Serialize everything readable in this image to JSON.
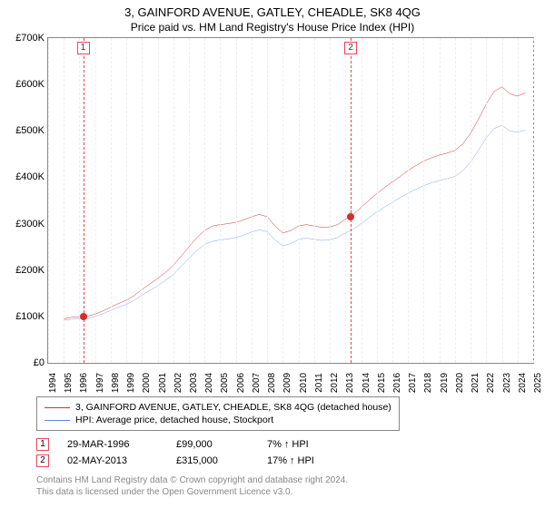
{
  "title": "3, GAINFORD AVENUE, GATLEY, CHEADLE, SK8 4QG",
  "subtitle": "Price paid vs. HM Land Registry's House Price Index (HPI)",
  "chart": {
    "type": "line",
    "ylim": [
      0,
      700000
    ],
    "yticks": [
      0,
      100000,
      200000,
      300000,
      400000,
      500000,
      600000,
      700000
    ],
    "ytick_labels": [
      "£0",
      "£100K",
      "£200K",
      "£300K",
      "£400K",
      "£500K",
      "£600K",
      "£700K"
    ],
    "xlim": [
      1994,
      2025
    ],
    "xticks": [
      1994,
      1995,
      1996,
      1997,
      1998,
      1999,
      2000,
      2001,
      2002,
      2003,
      2004,
      2005,
      2006,
      2007,
      2008,
      2009,
      2010,
      2011,
      2012,
      2013,
      2014,
      2015,
      2016,
      2017,
      2018,
      2019,
      2020,
      2021,
      2022,
      2023,
      2024,
      2025
    ],
    "background_color": "#ffffff",
    "grid_color": "#eeeeee",
    "border_color": "#888888",
    "series": [
      {
        "name": "3, GAINFORD AVENUE, GATLEY, CHEADLE, SK8 4QG (detached house)",
        "color": "#d82c2c",
        "line_width": 1.5,
        "data": [
          [
            1995.0,
            95000
          ],
          [
            1995.5,
            98000
          ],
          [
            1996.0,
            99000
          ],
          [
            1996.5,
            100000
          ],
          [
            1997.0,
            105000
          ],
          [
            1997.5,
            112000
          ],
          [
            1998.0,
            120000
          ],
          [
            1998.5,
            128000
          ],
          [
            1999.0,
            135000
          ],
          [
            1999.5,
            145000
          ],
          [
            2000.0,
            158000
          ],
          [
            2000.5,
            170000
          ],
          [
            2001.0,
            182000
          ],
          [
            2001.5,
            195000
          ],
          [
            2002.0,
            210000
          ],
          [
            2002.5,
            230000
          ],
          [
            2003.0,
            250000
          ],
          [
            2003.5,
            270000
          ],
          [
            2004.0,
            285000
          ],
          [
            2004.5,
            295000
          ],
          [
            2005.0,
            298000
          ],
          [
            2005.5,
            300000
          ],
          [
            2006.0,
            303000
          ],
          [
            2006.5,
            308000
          ],
          [
            2007.0,
            315000
          ],
          [
            2007.5,
            320000
          ],
          [
            2008.0,
            315000
          ],
          [
            2008.5,
            295000
          ],
          [
            2009.0,
            280000
          ],
          [
            2009.5,
            285000
          ],
          [
            2010.0,
            295000
          ],
          [
            2010.5,
            298000
          ],
          [
            2011.0,
            295000
          ],
          [
            2011.5,
            292000
          ],
          [
            2012.0,
            293000
          ],
          [
            2012.5,
            298000
          ],
          [
            2013.0,
            310000
          ],
          [
            2013.35,
            315000
          ],
          [
            2013.5,
            320000
          ],
          [
            2014.0,
            335000
          ],
          [
            2014.5,
            350000
          ],
          [
            2015.0,
            365000
          ],
          [
            2015.5,
            378000
          ],
          [
            2016.0,
            390000
          ],
          [
            2016.5,
            402000
          ],
          [
            2017.0,
            415000
          ],
          [
            2017.5,
            425000
          ],
          [
            2018.0,
            435000
          ],
          [
            2018.5,
            442000
          ],
          [
            2019.0,
            448000
          ],
          [
            2019.5,
            452000
          ],
          [
            2020.0,
            458000
          ],
          [
            2020.5,
            472000
          ],
          [
            2021.0,
            495000
          ],
          [
            2021.5,
            525000
          ],
          [
            2022.0,
            558000
          ],
          [
            2022.5,
            585000
          ],
          [
            2023.0,
            595000
          ],
          [
            2023.5,
            580000
          ],
          [
            2024.0,
            575000
          ],
          [
            2024.5,
            582000
          ]
        ]
      },
      {
        "name": "HPI: Average price, detached house, Stockport",
        "color": "#5b8fd6",
        "line_width": 1.2,
        "data": [
          [
            1995.0,
            92000
          ],
          [
            1995.5,
            94000
          ],
          [
            1996.0,
            95000
          ],
          [
            1996.5,
            96000
          ],
          [
            1997.0,
            100000
          ],
          [
            1997.5,
            106000
          ],
          [
            1998.0,
            113000
          ],
          [
            1998.5,
            120000
          ],
          [
            1999.0,
            126000
          ],
          [
            1999.5,
            135000
          ],
          [
            2000.0,
            146000
          ],
          [
            2000.5,
            156000
          ],
          [
            2001.0,
            166000
          ],
          [
            2001.5,
            178000
          ],
          [
            2002.0,
            190000
          ],
          [
            2002.5,
            208000
          ],
          [
            2003.0,
            225000
          ],
          [
            2003.5,
            242000
          ],
          [
            2004.0,
            255000
          ],
          [
            2004.5,
            262000
          ],
          [
            2005.0,
            265000
          ],
          [
            2005.5,
            267000
          ],
          [
            2006.0,
            270000
          ],
          [
            2006.5,
            275000
          ],
          [
            2007.0,
            282000
          ],
          [
            2007.5,
            287000
          ],
          [
            2008.0,
            283000
          ],
          [
            2008.5,
            265000
          ],
          [
            2009.0,
            252000
          ],
          [
            2009.5,
            257000
          ],
          [
            2010.0,
            266000
          ],
          [
            2010.5,
            269000
          ],
          [
            2011.0,
            266000
          ],
          [
            2011.5,
            264000
          ],
          [
            2012.0,
            265000
          ],
          [
            2012.5,
            270000
          ],
          [
            2013.0,
            280000
          ],
          [
            2013.5,
            288000
          ],
          [
            2014.0,
            300000
          ],
          [
            2014.5,
            313000
          ],
          [
            2015.0,
            325000
          ],
          [
            2015.5,
            336000
          ],
          [
            2016.0,
            346000
          ],
          [
            2016.5,
            356000
          ],
          [
            2017.0,
            366000
          ],
          [
            2017.5,
            374000
          ],
          [
            2018.0,
            382000
          ],
          [
            2018.5,
            388000
          ],
          [
            2019.0,
            393000
          ],
          [
            2019.5,
            397000
          ],
          [
            2020.0,
            402000
          ],
          [
            2020.5,
            414000
          ],
          [
            2021.0,
            433000
          ],
          [
            2021.5,
            458000
          ],
          [
            2022.0,
            485000
          ],
          [
            2022.5,
            505000
          ],
          [
            2023.0,
            512000
          ],
          [
            2023.5,
            500000
          ],
          [
            2024.0,
            497000
          ],
          [
            2024.5,
            502000
          ]
        ]
      }
    ],
    "markers": [
      {
        "n": "1",
        "x": 1996.24,
        "y": 99000,
        "dot_color": "#d82c2c",
        "line_color": "#e74856"
      },
      {
        "n": "2",
        "x": 2013.34,
        "y": 315000,
        "dot_color": "#d82c2c",
        "line_color": "#e74856"
      }
    ]
  },
  "legend": {
    "border_color": "#888888",
    "items": [
      {
        "color": "#d82c2c",
        "label": "3, GAINFORD AVENUE, GATLEY, CHEADLE, SK8 4QG (detached house)"
      },
      {
        "color": "#5b8fd6",
        "label": "HPI: Average price, detached house, Stockport"
      }
    ]
  },
  "transactions": [
    {
      "n": "1",
      "date": "29-MAR-1996",
      "price": "£99,000",
      "hpi_pct": "7%",
      "arrow": "↑",
      "hpi_label": "HPI"
    },
    {
      "n": "2",
      "date": "02-MAY-2013",
      "price": "£315,000",
      "hpi_pct": "17%",
      "arrow": "↑",
      "hpi_label": "HPI"
    }
  ],
  "footer": {
    "line1": "Contains HM Land Registry data © Crown copyright and database right 2024.",
    "line2": "This data is licensed under the Open Government Licence v3.0."
  }
}
